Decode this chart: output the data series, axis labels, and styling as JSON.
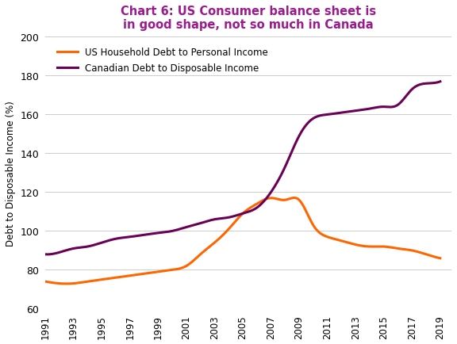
{
  "title": "Chart 6: US Consumer balance sheet is\nin good shape, not so much in Canada",
  "title_color": "#9B1B8E",
  "ylabel": "Debt to Disposable Income (%)",
  "ylim": [
    60,
    200
  ],
  "yticks": [
    60,
    80,
    100,
    120,
    140,
    160,
    180,
    200
  ],
  "xticks": [
    1991,
    1993,
    1995,
    1997,
    1999,
    2001,
    2003,
    2005,
    2007,
    2009,
    2011,
    2013,
    2015,
    2017,
    2019
  ],
  "us_label": "US Household Debt to Personal Income",
  "ca_label": "Canadian Debt to Disposable Income",
  "us_color": "#FF6600",
  "ca_color": "#6B0057",
  "us_data": {
    "years": [
      1991,
      1992,
      1993,
      1994,
      1995,
      1996,
      1997,
      1998,
      1999,
      2000,
      2001,
      2002,
      2003,
      2004,
      2005,
      2006,
      2007,
      2008,
      2009,
      2010,
      2011,
      2012,
      2013,
      2014,
      2015,
      2016,
      2017,
      2018,
      2019
    ],
    "values": [
      74,
      73,
      73,
      74,
      75,
      76,
      77,
      78,
      79,
      80,
      82,
      88,
      94,
      101,
      109,
      114,
      117,
      116,
      116,
      103,
      97,
      95,
      93,
      92,
      92,
      91,
      90,
      88,
      86
    ]
  },
  "ca_data": {
    "years": [
      1991,
      1992,
      1993,
      1994,
      1995,
      1996,
      1997,
      1998,
      1999,
      2000,
      2001,
      2002,
      2003,
      2004,
      2005,
      2006,
      2007,
      2008,
      2009,
      2010,
      2011,
      2012,
      2013,
      2014,
      2015,
      2016,
      2017,
      2018,
      2019
    ],
    "values": [
      88,
      89,
      91,
      92,
      94,
      96,
      97,
      98,
      99,
      100,
      102,
      104,
      106,
      107,
      109,
      112,
      120,
      133,
      149,
      158,
      160,
      161,
      162,
      163,
      164,
      165,
      173,
      176,
      177
    ]
  },
  "background_color": "#ffffff",
  "grid_color": "#cccccc",
  "linewidth": 2.2
}
